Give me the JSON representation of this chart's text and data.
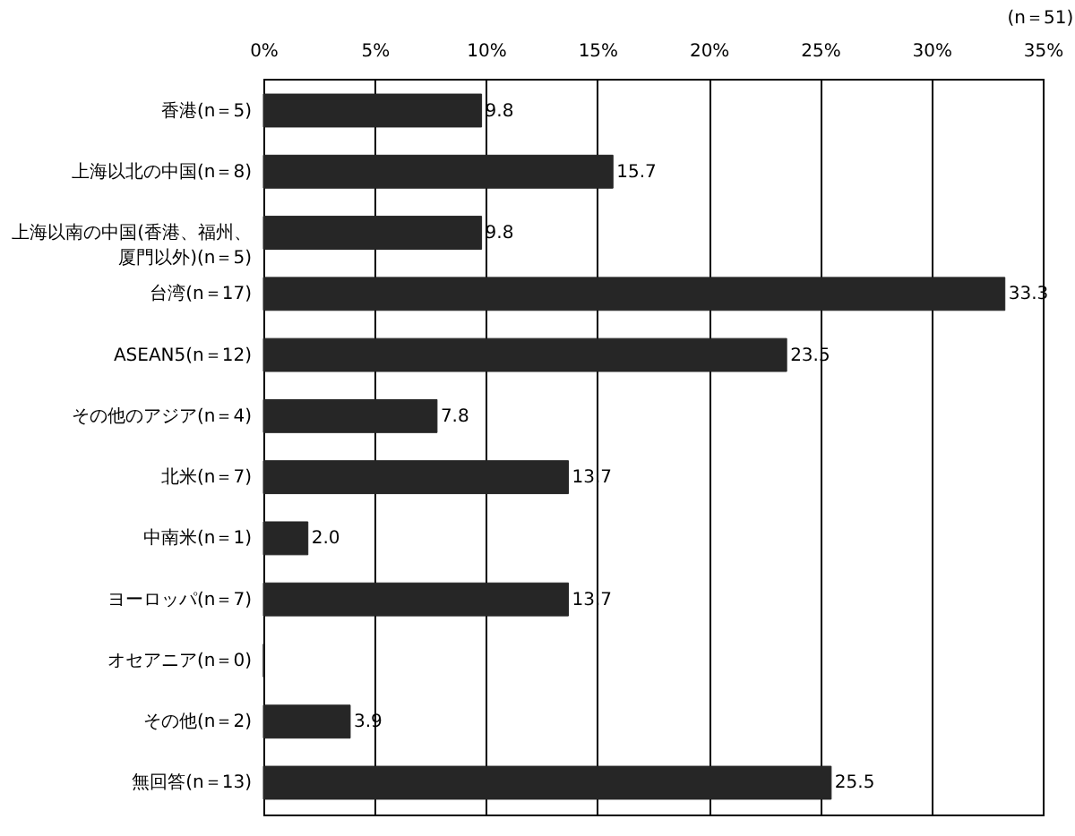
{
  "chart_data": {
    "type": "bar",
    "orientation": "horizontal",
    "categories": [
      "香港(n＝5)",
      "上海以北の中国(n＝8)",
      "上海以南の中国(香港、福州、厦門以外)(n＝5)",
      "台湾(n＝17)",
      "ASEAN5(n＝12)",
      "その他のアジア(n＝4)",
      "北米(n＝7)",
      "中南米(n＝1)",
      "ヨーロッパ(n＝7)",
      "オセアニア(n＝0)",
      "その他(n＝2)",
      "無回答(n＝13)"
    ],
    "values": [
      9.8,
      15.7,
      9.8,
      33.3,
      23.5,
      7.8,
      13.7,
      2.0,
      13.7,
      0,
      3.9,
      25.5
    ],
    "value_labels": [
      "9.8",
      "15.7",
      "9.8",
      "33.3",
      "23.5",
      "7.8",
      "13.7",
      "2.0",
      "13.7",
      null,
      "3.9",
      "25.5"
    ],
    "color": "#262626",
    "xlim": [
      0,
      35
    ],
    "xticks": [
      {
        "value": 0,
        "label": "0%"
      },
      {
        "value": 5,
        "label": "5%"
      },
      {
        "value": 10,
        "label": "10%"
      },
      {
        "value": 15,
        "label": "15%"
      },
      {
        "value": 20,
        "label": "20%"
      },
      {
        "value": 25,
        "label": "25%"
      },
      {
        "value": 30,
        "label": "30%"
      },
      {
        "value": 35,
        "label": "35%"
      }
    ],
    "grid": "x",
    "annotations": [
      "(n＝51)"
    ]
  }
}
